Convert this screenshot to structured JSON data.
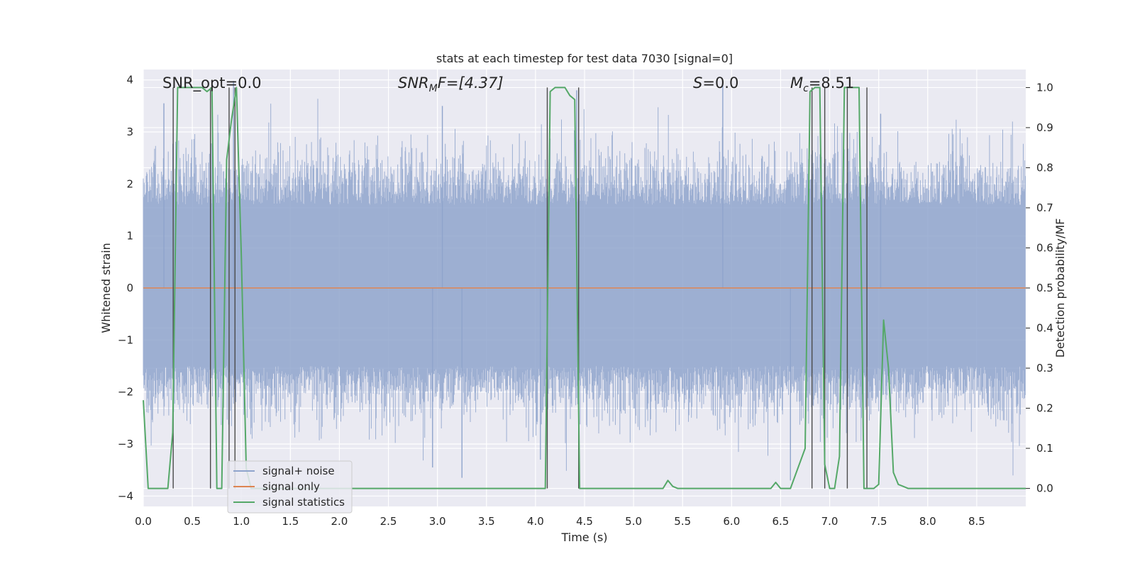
{
  "chart_data": {
    "type": "line",
    "title": "stats at each timestep for test data 7030 [signal=0]",
    "xlabel": "Time (s)",
    "ylabel_left": "Whitened strain",
    "ylabel_right": "Detection probability/MF",
    "xlim": [
      0.0,
      9.0
    ],
    "ylim_left": [
      -4.2,
      4.2
    ],
    "ylim_right": [
      -0.045,
      1.045
    ],
    "xticks": [
      "0.0",
      "0.5",
      "1.0",
      "1.5",
      "2.0",
      "2.5",
      "3.0",
      "3.5",
      "4.0",
      "4.5",
      "5.0",
      "5.5",
      "6.0",
      "6.5",
      "7.0",
      "7.5",
      "8.0",
      "8.5"
    ],
    "yticks_left": [
      "4",
      "3",
      "2",
      "1",
      "0",
      "−1",
      "−2",
      "−3",
      "−4"
    ],
    "yticks_right": [
      "1.0",
      "0.9",
      "0.8",
      "0.7",
      "0.6",
      "0.5",
      "0.4",
      "0.3",
      "0.2",
      "0.1",
      "0.0"
    ],
    "grid": true,
    "legend_position": "lower-left",
    "annotations": {
      "snr_opt": "SNR_opt=0.0",
      "snr_mf_label": "SNR",
      "snr_mf_sub": "M",
      "snr_mf_value": "F=[4.37]",
      "s_label": "S",
      "s_value": "=0.0",
      "mc_label": "M",
      "mc_sub": "c",
      "mc_value": "=8.51"
    },
    "series": [
      {
        "name": "signal+ noise",
        "color": "#8fa4cc",
        "axis": "left",
        "description_values": {
          "typical_range": [
            -2.0,
            2.0
          ],
          "max": 4.0,
          "min": -3.7
        }
      },
      {
        "name": "signal only",
        "color": "#dd8452",
        "axis": "left",
        "x": [
          0.0,
          9.0
        ],
        "y": [
          0.0,
          0.0
        ]
      },
      {
        "name": "signal statistics",
        "color": "#55a868",
        "axis": "right",
        "x": [
          0.0,
          0.05,
          0.1,
          0.15,
          0.2,
          0.25,
          0.3,
          0.35,
          0.4,
          0.45,
          0.5,
          0.55,
          0.6,
          0.65,
          0.7,
          0.75,
          0.8,
          0.85,
          0.9,
          0.95,
          1.0,
          1.05,
          1.1,
          1.5,
          2.0,
          2.5,
          3.0,
          3.5,
          4.0,
          4.1,
          4.15,
          4.2,
          4.25,
          4.3,
          4.35,
          4.4,
          4.45,
          4.5,
          5.0,
          5.3,
          5.35,
          5.4,
          5.45,
          5.5,
          6.0,
          6.4,
          6.45,
          6.5,
          6.55,
          6.6,
          6.75,
          6.8,
          6.85,
          6.9,
          6.95,
          7.0,
          7.05,
          7.1,
          7.15,
          7.2,
          7.25,
          7.3,
          7.35,
          7.4,
          7.45,
          7.5,
          7.55,
          7.6,
          7.65,
          7.7,
          7.75,
          7.8,
          7.85,
          7.9,
          8.0,
          8.1,
          8.5,
          9.0
        ],
        "y": [
          0.22,
          0.0,
          0.0,
          0.0,
          0.0,
          0.0,
          0.14,
          1.0,
          1.0,
          1.0,
          1.0,
          1.0,
          1.0,
          0.99,
          1.0,
          0.0,
          0.0,
          0.82,
          0.92,
          1.0,
          0.58,
          0.05,
          0.0,
          0.0,
          0.0,
          0.0,
          0.0,
          0.0,
          0.0,
          0.0,
          0.99,
          1.0,
          1.0,
          1.0,
          0.98,
          0.97,
          0.0,
          0.0,
          0.0,
          0.0,
          0.02,
          0.005,
          0.0,
          0.0,
          0.0,
          0.0,
          0.015,
          0.0,
          0.0,
          0.0,
          0.1,
          0.99,
          1.0,
          1.0,
          0.06,
          0.0,
          0.0,
          0.08,
          1.0,
          1.0,
          1.0,
          1.0,
          0.0,
          0.0,
          0.0,
          0.01,
          0.42,
          0.3,
          0.04,
          0.01,
          0.005,
          0.0,
          0.0,
          0.0,
          0.0,
          0.0,
          0.0,
          0.0
        ]
      }
    ],
    "vertical_lines_x": [
      0.305,
      0.685,
      0.875,
      0.935,
      4.12,
      4.44,
      6.82,
      6.95,
      7.18,
      7.38
    ]
  }
}
